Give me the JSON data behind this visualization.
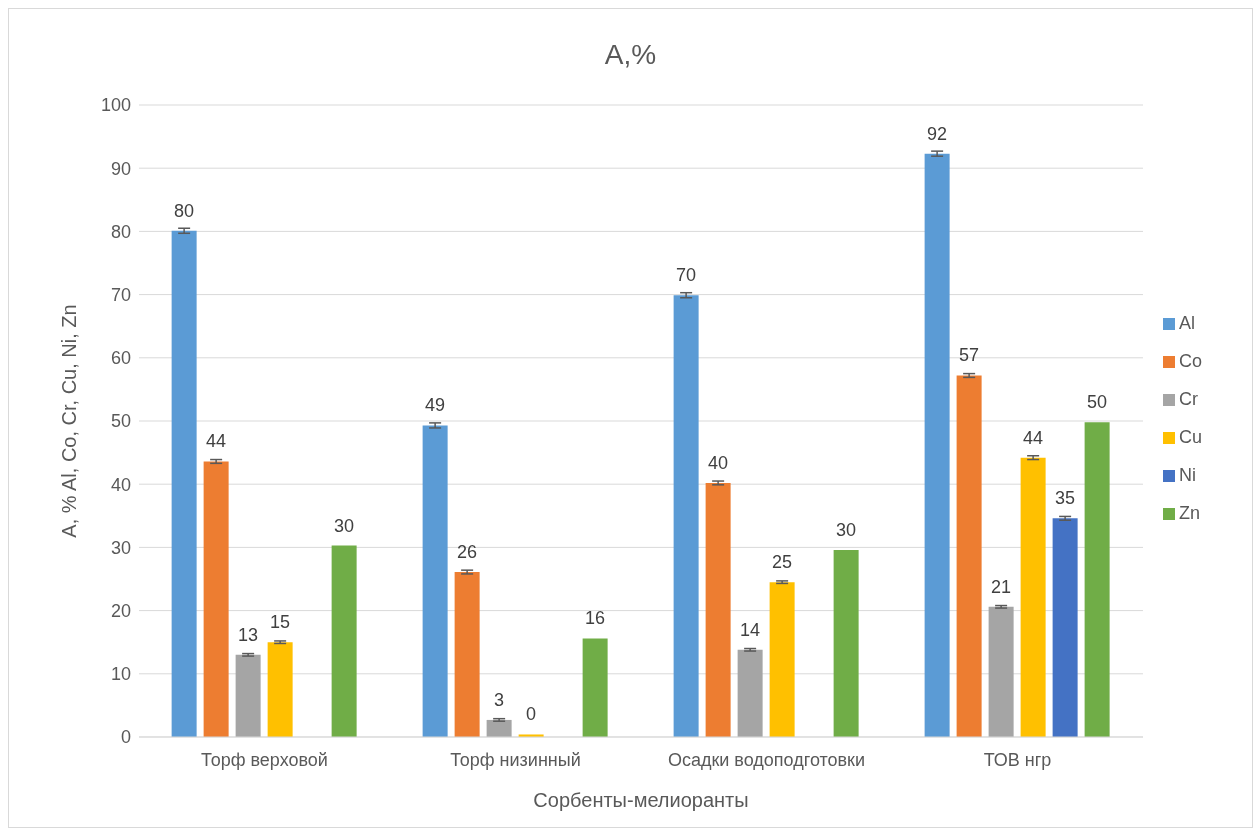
{
  "chart_data": {
    "type": "bar",
    "title": "A,%",
    "xlabel": "Сорбенты-мелиоранты",
    "ylabel": "A, % Al, Co, Cr, Cu, Ni, Zn",
    "categories": [
      "Торф верховой",
      "Торф низинный",
      "Осадки водоподготовки",
      "ТОВ нгр"
    ],
    "series": [
      {
        "name": "Al",
        "color": "#5b9bd5",
        "values": [
          80.1,
          49.3,
          69.9,
          92.3
        ],
        "errors": [
          0.4,
          0.4,
          0.4,
          0.4
        ],
        "value_labels": [
          "80",
          "49",
          "70",
          "92"
        ]
      },
      {
        "name": "Co",
        "color": "#ed7d31",
        "values": [
          43.6,
          26.1,
          40.2,
          57.2
        ],
        "errors": [
          0.3,
          0.3,
          0.3,
          0.3
        ],
        "value_labels": [
          "44",
          "26",
          "40",
          "57"
        ]
      },
      {
        "name": "Cr",
        "color": "#a5a5a5",
        "values": [
          13.0,
          2.7,
          13.8,
          20.6
        ],
        "errors": [
          0.2,
          0.2,
          0.2,
          0.2
        ],
        "value_labels": [
          "13",
          "3",
          "14",
          "21"
        ]
      },
      {
        "name": "Cu",
        "color": "#ffc000",
        "values": [
          15.0,
          0.4,
          24.5,
          44.2
        ],
        "errors": [
          0.2,
          null,
          0.2,
          0.3
        ],
        "value_labels": [
          "15",
          "0",
          "25",
          "44"
        ]
      },
      {
        "name": "Ni",
        "color": "#4472c4",
        "values": [
          0,
          0,
          0,
          34.6
        ],
        "errors": [
          null,
          null,
          null,
          0.3
        ],
        "value_labels": [
          null,
          null,
          null,
          "35"
        ]
      },
      {
        "name": "Zn",
        "color": "#70ad47",
        "values": [
          30.3,
          15.6,
          29.6,
          49.8
        ],
        "value_labels": [
          "30",
          "16",
          "30",
          "50"
        ]
      }
    ],
    "ylim": [
      0,
      100
    ],
    "yticks": [
      0,
      10,
      20,
      30,
      40,
      50,
      60,
      70,
      80,
      90,
      100
    ],
    "grid": "y",
    "legend": "right"
  }
}
